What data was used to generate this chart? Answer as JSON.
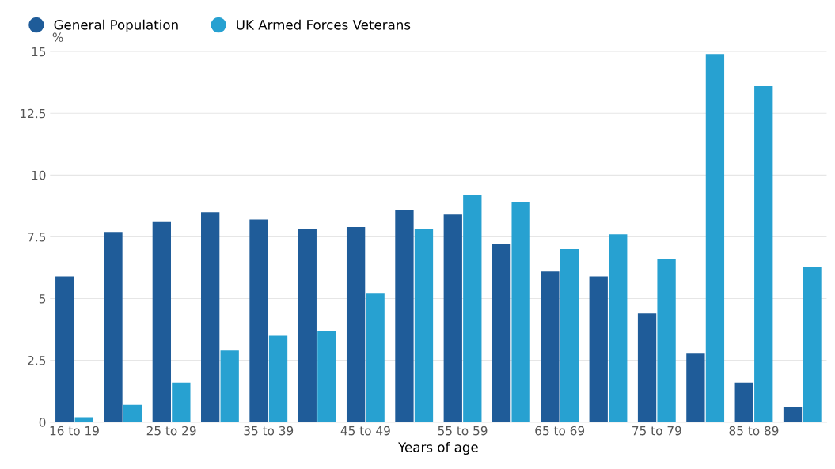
{
  "chart_data": {
    "type": "bar",
    "xlabel": "Years of age",
    "ylabel": "%",
    "categories": [
      "16 to 19",
      null,
      "25 to 29",
      null,
      "35 to 39",
      null,
      "45 to 49",
      null,
      "55 to 59",
      null,
      "65 to 69",
      null,
      "75 to 79",
      null,
      "85 to 89",
      null
    ],
    "series": [
      {
        "name": "General Population",
        "color": "#1f5c99",
        "values": [
          5.9,
          7.7,
          8.1,
          8.5,
          8.2,
          7.8,
          7.9,
          8.6,
          8.4,
          7.2,
          6.1,
          5.9,
          4.4,
          2.8,
          1.6,
          0.6
        ]
      },
      {
        "name": "UK Armed Forces Veterans",
        "color": "#27a1d1",
        "values": [
          0.2,
          0.7,
          1.6,
          2.9,
          3.5,
          3.7,
          5.2,
          7.8,
          9.2,
          8.9,
          7.0,
          7.6,
          6.6,
          14.9,
          13.6,
          6.3
        ]
      }
    ],
    "ylim": [
      0,
      15
    ],
    "yticks": [
      0,
      2.5,
      5,
      7.5,
      10,
      12.5,
      15
    ],
    "grid": "y",
    "legend": "top left",
    "marker": "circle"
  }
}
